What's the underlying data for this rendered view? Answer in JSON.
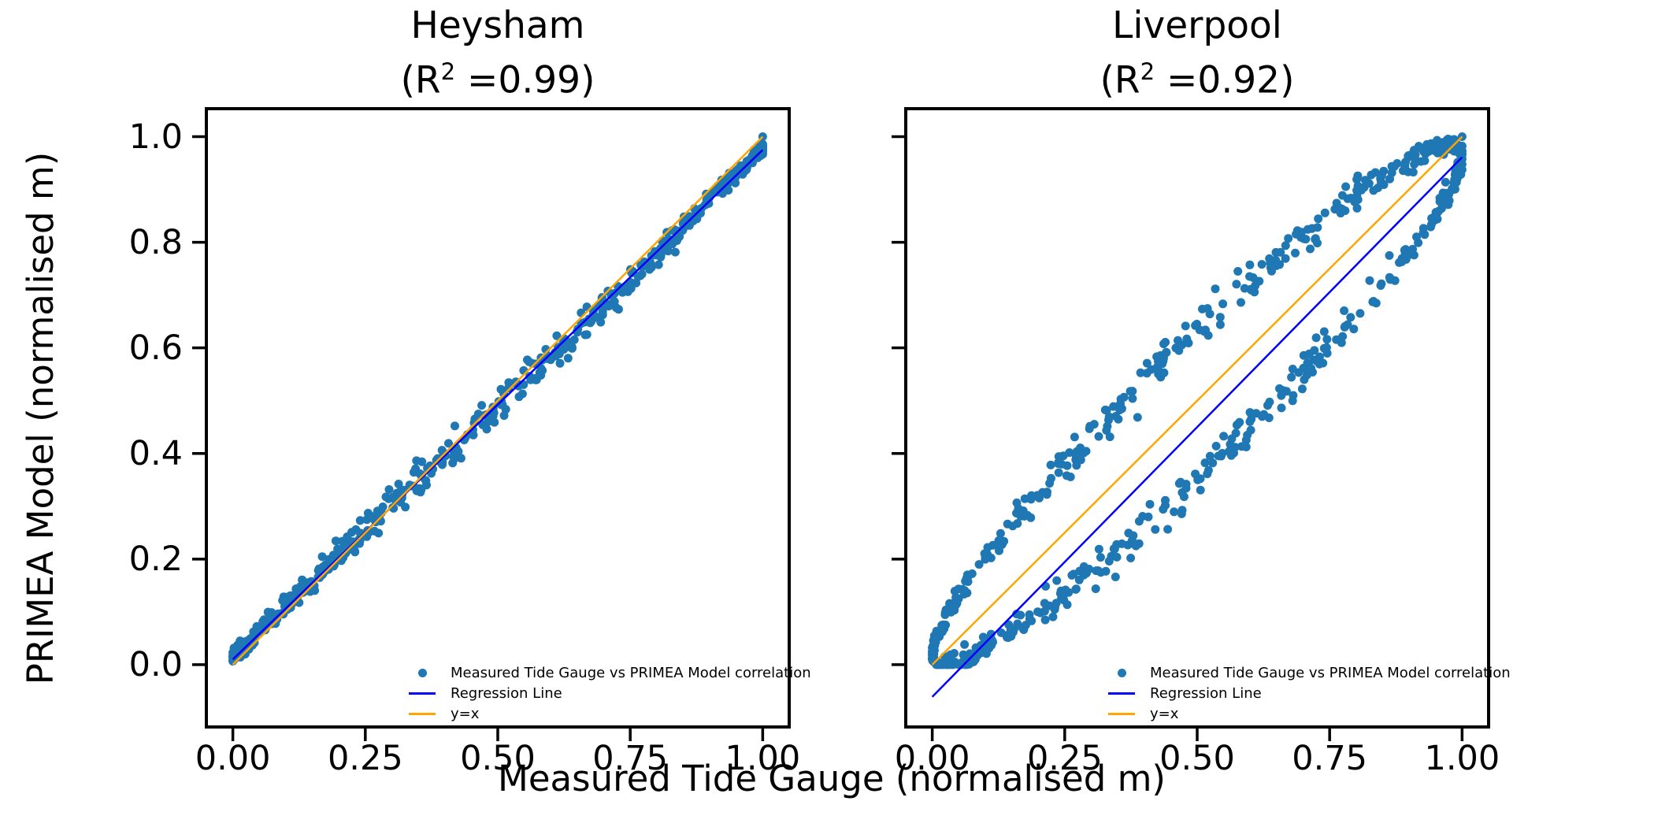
{
  "figure": {
    "background": "#ffffff"
  },
  "xlabel": "Measured Tide Gauge (normalised m)",
  "ylabel": "PRIMEA Model (normalised m)",
  "colors": {
    "scatter": "#1f77b4",
    "regression": "#0000ff",
    "identity": "#ffa500",
    "axis": "#000000",
    "text": "#000000"
  },
  "axes": {
    "xlim": [
      -0.05,
      1.05
    ],
    "ylim": [
      -0.118,
      1.053
    ],
    "xticks": {
      "values": [
        0,
        0.25,
        0.5,
        0.75,
        1.0
      ],
      "labels": [
        "0.00",
        "0.25",
        "0.50",
        "0.75",
        "1.00"
      ]
    },
    "yticks": {
      "values": [
        0,
        0.2,
        0.4,
        0.6,
        0.8,
        1.0
      ],
      "labels": [
        "0.0",
        "0.2",
        "0.4",
        "0.6",
        "0.8",
        "1.0"
      ]
    }
  },
  "legend": {
    "entries": [
      {
        "type": "marker",
        "color_key": "scatter",
        "label": "Measured Tide Gauge vs PRIMEA Model correlation"
      },
      {
        "type": "line",
        "color_key": "regression",
        "label": "Regression Line"
      },
      {
        "type": "line",
        "color_key": "identity",
        "label": "y=x"
      }
    ]
  },
  "chart_data": [
    {
      "type": "scatter",
      "title": "Heysham",
      "r2": 0.99,
      "subtitle_prefix": "(R",
      "subtitle_sup": "2",
      "subtitle_suffix": " =0.99)",
      "show_ytick_labels": true,
      "scatter": {
        "name": "Measured Tide Gauge vs PRIMEA Model correlation",
        "pattern": "diagonal",
        "n": 620,
        "seed": 42,
        "slope": 0.963,
        "intercept": 0.01,
        "wiggle_amp": 0.007,
        "wiggle_freq": 1.0,
        "wiggle_phase": 0.8,
        "noise_base": 0.005,
        "noise_mid": 0.044,
        "y_scale": 1.0,
        "anchors": [
          [
            0.0,
            0.008
          ],
          [
            1.0,
            1.0
          ]
        ]
      },
      "regression_line": {
        "name": "Regression Line",
        "x1": 0,
        "y1": 0.01,
        "x2": 1,
        "y2": 0.975,
        "slope": 0.965,
        "intercept": 0.01
      },
      "identity_line": {
        "name": "y=x",
        "x1": 0,
        "y1": 0,
        "x2": 1,
        "y2": 1
      }
    },
    {
      "type": "scatter",
      "title": "Liverpool",
      "r2": 0.92,
      "subtitle_prefix": "(R",
      "subtitle_sup": "2",
      "subtitle_suffix": " =0.92)",
      "show_ytick_labels": false,
      "scatter": {
        "name": "Measured Tide Gauge vs PRIMEA Model correlation",
        "pattern": "hysteresis",
        "n": 680,
        "seed": 7,
        "phase": 0.29,
        "noise_base": 0.006,
        "noise_mid": 0.052,
        "y_scale": 0.985,
        "anchors": [
          [
            0.0,
            0.01
          ],
          [
            1.0,
            1.0
          ]
        ]
      },
      "regression_line": {
        "name": "Regression Line",
        "x1": 0,
        "y1": -0.061,
        "x2": 1,
        "y2": 0.961,
        "slope": 1.022,
        "intercept": -0.061
      },
      "identity_line": {
        "name": "y=x",
        "x1": 0,
        "y1": 0,
        "x2": 1,
        "y2": 1
      }
    }
  ]
}
